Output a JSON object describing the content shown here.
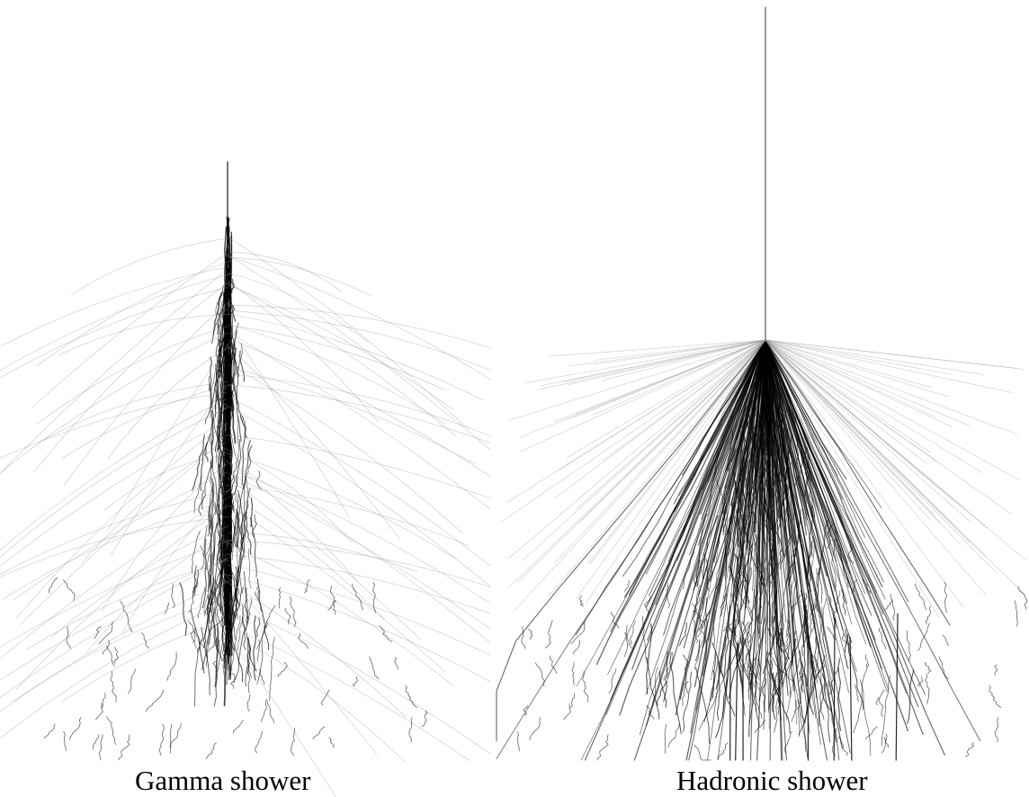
{
  "panels": [
    {
      "caption": "Gamma shower"
    },
    {
      "caption": "Hadronic shower"
    }
  ],
  "colors": {
    "track": "#000000",
    "faint_track": "#9a9a9a",
    "background": "#ffffff"
  }
}
